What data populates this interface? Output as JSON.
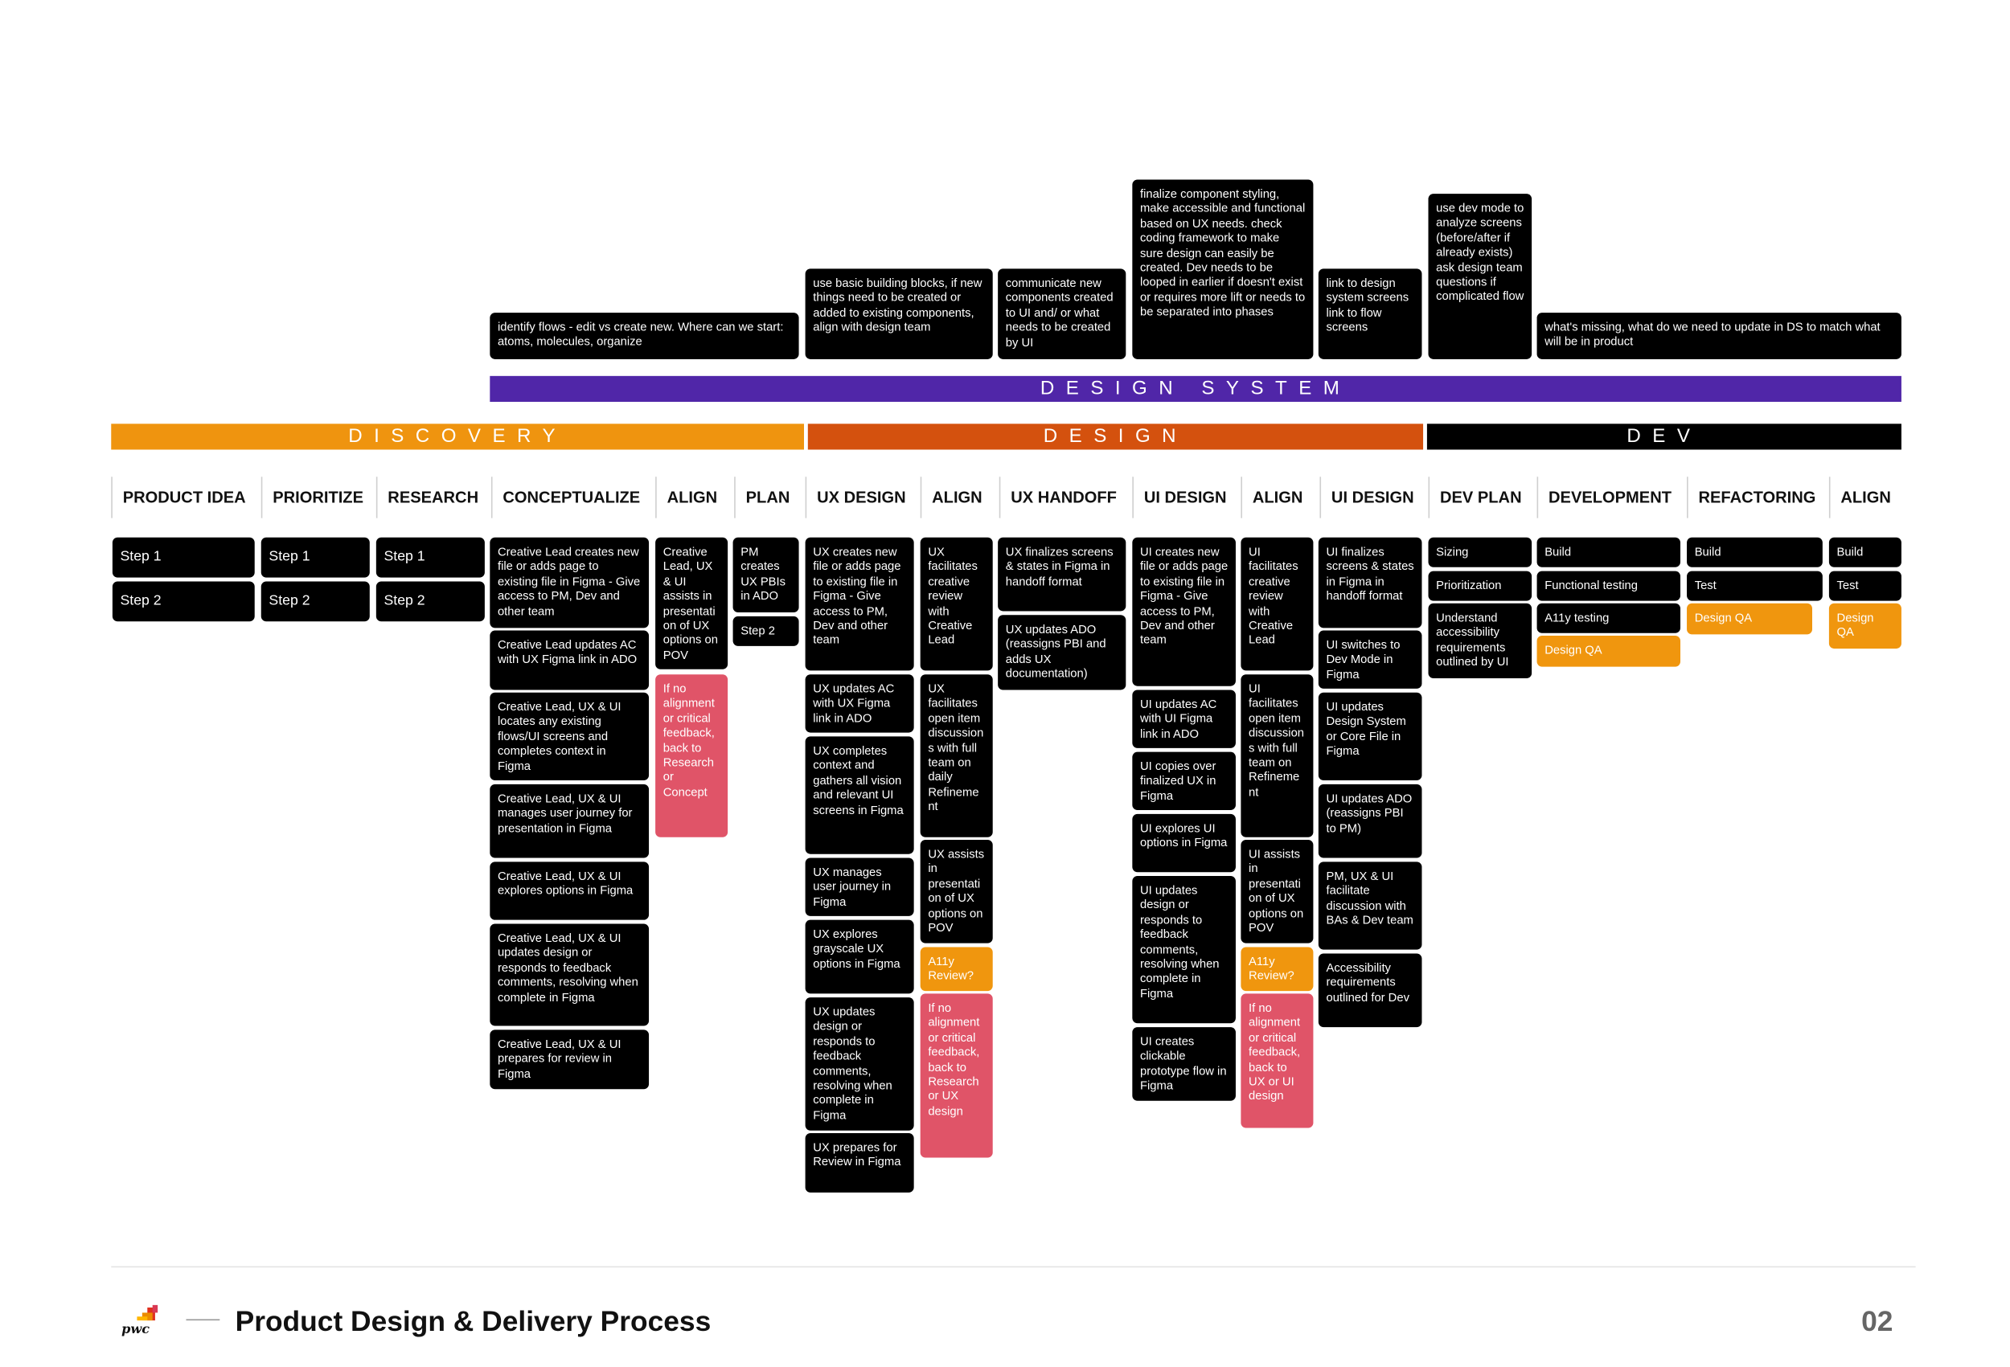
{
  "phases": {
    "discovery": "DISCOVERY",
    "design": "DESIGN",
    "dev": "DEV",
    "design_system": "DESIGN SYSTEM"
  },
  "colors": {
    "discovery": "#ef940f",
    "design": "#d4510e",
    "dev": "#000000",
    "design_system": "#5026a8",
    "review": "#f0960e",
    "blocker": "#e05468"
  },
  "columns": [
    {
      "header": "PRODUCT IDEA",
      "steps": [
        "Step 1",
        "Step 2"
      ]
    },
    {
      "header": "PRIORITIZE",
      "steps": [
        "Step 1",
        "Step 2"
      ]
    },
    {
      "header": "RESEARCH",
      "steps": [
        "Step 1",
        "Step 2"
      ]
    },
    {
      "header": "CONCEPTUALIZE",
      "steps": [
        "Creative Lead creates new file or adds page to existing file in Figma - Give access to PM, Dev and other team",
        "Creative Lead updates AC with UX Figma link in ADO",
        "Creative Lead, UX & UI locates any existing flows/UI screens and completes context in Figma",
        "Creative Lead, UX & UI manages user journey for presentation in Figma",
        "Creative Lead, UX & UI explores options in Figma",
        "Creative Lead, UX & UI updates design or responds to feedback comments, resolving when complete in Figma",
        "Creative Lead, UX & UI prepares for review in Figma"
      ]
    },
    {
      "header": "ALIGN",
      "steps": [
        "Creative Lead, UX & UI assists in presentation of UX options on POV",
        "If no alignment or critical feedback, back to Research or Concept"
      ]
    },
    {
      "header": "PLAN",
      "steps": [
        "PM creates UX PBIs in ADO",
        "Step 2"
      ]
    },
    {
      "header": "UX DESIGN",
      "steps": [
        "UX creates new file or adds page to existing file in Figma - Give access to PM, Dev and other team",
        "UX updates AC with UX Figma link in ADO",
        "UX completes context and gathers all vision and relevant UI screens in Figma",
        "UX manages user journey in Figma",
        "UX explores grayscale UX options in Figma",
        "UX updates design or responds to feedback comments, resolving when complete in Figma",
        "UX prepares for Review in Figma"
      ]
    },
    {
      "header": "ALIGN",
      "steps": [
        "UX facilitates creative review with Creative Lead",
        "UX facilitates open item discussions with full team on daily Refinement",
        "UX assists in presentation of UX options on POV",
        "A11y Review?",
        "If no alignment or critical feedback, back to Research or UX design"
      ]
    },
    {
      "header": "UX HANDOFF",
      "steps": [
        "UX finalizes screens & states in Figma in handoff format",
        "UX updates ADO (reassigns PBI and adds UX documentation)"
      ]
    },
    {
      "header": "UI DESIGN",
      "steps": [
        "UI creates new file or adds page to existing file in Figma - Give access to PM, Dev and other team",
        "UI updates AC with UI Figma link in ADO",
        "UI copies over finalized UX in Figma",
        "UI explores UI options in Figma",
        "UI updates design or responds to feedback comments, resolving when complete in Figma",
        "UI creates clickable prototype flow in Figma"
      ]
    },
    {
      "header": "ALIGN",
      "steps": [
        "UI facilitates creative review with Creative Lead",
        "UI facilitates open item discussions with full team on Refinement",
        "UI assists in presentation of UX options on POV",
        "A11y Review?",
        "If no alignment or critical feedback, back to UX or UI design"
      ]
    },
    {
      "header": "UI DESIGN",
      "steps": [
        "UI finalizes screens & states in Figma in handoff format",
        "UI switches to Dev Mode in Figma",
        "UI updates Design System or Core File in Figma",
        "UI updates ADO (reassigns PBI to PM)",
        "PM, UX & UI facilitate discussion with BAs & Dev team",
        "Accessibility requirements outlined for Dev"
      ]
    },
    {
      "header": "DEV PLAN",
      "steps": [
        "Sizing",
        "Prioritization",
        "Understand accessibility requirements outlined by UI"
      ]
    },
    {
      "header": "DEVELOPMENT",
      "steps": [
        "Build",
        "Functional testing",
        "A11y testing",
        "Design QA"
      ]
    },
    {
      "header": "REFACTORING",
      "steps": [
        "Build",
        "Test",
        "Design QA"
      ]
    },
    {
      "header": "ALIGN",
      "steps": [
        "Build",
        "Test",
        "Design QA"
      ]
    }
  ],
  "design_system_notes": [
    "identify flows - edit vs create new. Where can we start: atoms, molecules, organize",
    "use basic building blocks, if new things need to be created or added to existing components, align with design team",
    "communicate new components created to UI and/ or what needs to be created by UI",
    "finalize component styling, make accessible and functional based on UX needs. check coding framework to make sure design can easily be created. Dev needs to be looped in earlier if doesn't exist or requires more lift or needs to be separated into phases",
    "link to design system screens link to flow screens",
    "use dev mode to analyze screens (before/after if already exists) ask design team questions if complicated flow",
    "what's missing, what do we need to update in DS to match what will be in product"
  ],
  "footer": {
    "logo_text": "pwc",
    "title": "Product Design & Delivery Process",
    "page_number": "02"
  }
}
